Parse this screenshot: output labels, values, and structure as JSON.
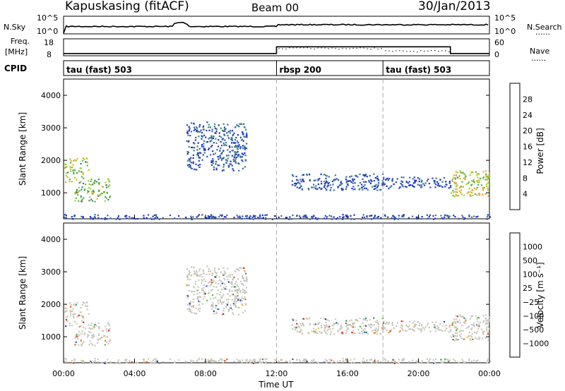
{
  "header": {
    "station": "Kapuskasing (fitACF)",
    "beam": "Beam 00",
    "date": "30/Jan/2013"
  },
  "top_panels": {
    "nsky_label": "N.Sky",
    "nsearch_label": "N.Search",
    "freq_label": "Freq.",
    "mhz_label": "[MHz]",
    "nave_label": "Nave",
    "cpid_label": "CPID",
    "dots": "......",
    "nsky_ticks": [
      "10^5",
      "10^0"
    ],
    "nsearch_ticks": [
      "10^5",
      "10^0"
    ],
    "freq_ticks": [
      "18",
      "8"
    ],
    "nave_ticks": [
      "60",
      "0"
    ]
  },
  "cpid_segments": [
    {
      "label": "tau (fast) 503",
      "start_h": 0
    },
    {
      "label": "rbsp 200",
      "start_h": 12
    },
    {
      "label": "tau (fast) 503",
      "start_h": 18
    }
  ],
  "colors": {
    "power": [
      "#1a2fd6",
      "#2a48b8",
      "#3a6f9c",
      "#3e8a6e",
      "#57b548",
      "#a8cf2f",
      "#e0b02b",
      "#f08a2a",
      "#ee5a1e",
      "#e2211e"
    ],
    "velocity": [
      "#2a3fbf",
      "#3a5aa8",
      "#3e8a6e",
      "#5bbb3f",
      "#c8c8c0",
      "#e8b83a",
      "#f08a2a",
      "#e75a1e",
      "#e2211e"
    ]
  },
  "chart_data": [
    {
      "type": "heatmap",
      "name": "power",
      "ylabel": "Slant Range [km]",
      "yticks": [
        "4000",
        "3000",
        "2000",
        "1000"
      ],
      "yticks_values": [
        4000,
        3000,
        2000,
        1000
      ],
      "ylim": [
        200,
        4500
      ],
      "xlim": [
        0,
        24
      ],
      "colorbar_label": "Power [dB]",
      "colorbar_ticks": [
        "28",
        "24",
        "20",
        "16",
        "12",
        "8",
        "4"
      ],
      "colorbar_range": [
        0,
        30
      ],
      "regions": [
        {
          "t0": 0.0,
          "t1": 1.5,
          "r0": 1350,
          "r1": 2100,
          "level": 16
        },
        {
          "t0": 0.6,
          "t1": 2.6,
          "r0": 750,
          "r1": 1450,
          "level": 14
        },
        {
          "t0": 6.9,
          "t1": 10.3,
          "r0": 1700,
          "r1": 3200,
          "level": 6
        },
        {
          "t0": 12.8,
          "t1": 18.0,
          "r0": 1100,
          "r1": 1600,
          "level": 5
        },
        {
          "t0": 18.0,
          "t1": 21.8,
          "r0": 1150,
          "r1": 1500,
          "level": 4
        },
        {
          "t0": 21.8,
          "t1": 24.0,
          "r0": 900,
          "r1": 1700,
          "level": 17
        },
        {
          "t0": 0.0,
          "t1": 24.0,
          "r0": 200,
          "r1": 350,
          "level": 4
        }
      ]
    },
    {
      "type": "heatmap",
      "name": "velocity",
      "ylabel": "Slant Range [km]",
      "xlabel": "Time UT",
      "xticks": [
        "00:00",
        "04:00",
        "08:00",
        "12:00",
        "16:00",
        "20:00",
        "00:00"
      ],
      "xticks_values": [
        0,
        4,
        8,
        12,
        16,
        20,
        24
      ],
      "yticks": [
        "4000",
        "3000",
        "2000",
        "1000"
      ],
      "yticks_values": [
        4000,
        3000,
        2000,
        1000
      ],
      "ylim": [
        200,
        4500
      ],
      "xlim": [
        0,
        24
      ],
      "colorbar_label": "Velocity [m s⁻¹]",
      "colorbar_ticks": [
        "1000",
        "500",
        "100",
        "25",
        "−25",
        "−100",
        "−500",
        "−1000"
      ]
    }
  ]
}
